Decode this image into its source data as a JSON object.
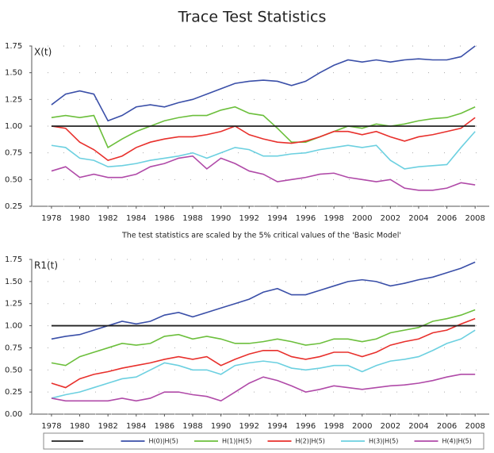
{
  "title": "Trace Test Statistics",
  "note": "The test statistics are scaled by the 5% critical values of the 'Basic Model'",
  "chart_data": [
    {
      "type": "line",
      "label": "X(t)",
      "x": [
        1978,
        1979,
        1980,
        1981,
        1982,
        1983,
        1984,
        1985,
        1986,
        1987,
        1988,
        1989,
        1990,
        1991,
        1992,
        1993,
        1994,
        1995,
        1996,
        1997,
        1998,
        1999,
        2000,
        2001,
        2002,
        2003,
        2004,
        2005,
        2006,
        2007,
        2008
      ],
      "xlim": [
        1976.6,
        2009
      ],
      "xticks": [
        1978,
        1980,
        1982,
        1984,
        1986,
        1988,
        1990,
        1992,
        1994,
        1996,
        1998,
        2000,
        2002,
        2004,
        2006,
        2008
      ],
      "ylim": [
        0.25,
        1.75
      ],
      "yticks": [
        0.25,
        {
          "value": 0.5,
          "label": "0.50"
        },
        0.75,
        {
          "value": 1,
          "label": "1.00"
        },
        1.25,
        {
          "value": 1.5,
          "label": "1.50"
        },
        1.75
      ],
      "grid": true,
      "hline": {
        "value": 1,
        "color": "#222222"
      },
      "series": [
        {
          "name": "H(0)|H(5)",
          "color": "#3a4fa8",
          "values": [
            1.2,
            1.3,
            1.33,
            1.3,
            1.05,
            1.1,
            1.18,
            1.2,
            1.18,
            1.22,
            1.25,
            1.3,
            1.35,
            1.4,
            1.42,
            1.43,
            1.42,
            1.38,
            1.42,
            1.5,
            1.57,
            1.62,
            1.6,
            1.62,
            1.6,
            1.62,
            1.63,
            1.62,
            1.62,
            1.65,
            1.75
          ]
        },
        {
          "name": "H(1)|H(5)",
          "color": "#6cbf3c",
          "values": [
            1.08,
            1.1,
            1.08,
            1.1,
            0.8,
            0.88,
            0.95,
            1.0,
            1.05,
            1.08,
            1.1,
            1.1,
            1.15,
            1.18,
            1.12,
            1.1,
            0.98,
            0.85,
            0.85,
            0.9,
            0.95,
            1.0,
            0.98,
            1.02,
            1.0,
            1.02,
            1.05,
            1.07,
            1.08,
            1.12,
            1.18
          ]
        },
        {
          "name": "H(2)|H(5)",
          "color": "#e8302c",
          "values": [
            1.0,
            0.98,
            0.85,
            0.78,
            0.68,
            0.72,
            0.8,
            0.85,
            0.88,
            0.9,
            0.9,
            0.92,
            0.95,
            1.0,
            0.92,
            0.88,
            0.85,
            0.84,
            0.86,
            0.9,
            0.95,
            0.95,
            0.92,
            0.95,
            0.9,
            0.86,
            0.9,
            0.92,
            0.95,
            0.98,
            1.08
          ]
        },
        {
          "name": "H(3)|H(5)",
          "color": "#6cd0e0",
          "values": [
            0.82,
            0.8,
            0.7,
            0.68,
            0.62,
            0.63,
            0.65,
            0.68,
            0.7,
            0.72,
            0.75,
            0.7,
            0.75,
            0.8,
            0.78,
            0.72,
            0.72,
            0.74,
            0.75,
            0.78,
            0.8,
            0.82,
            0.8,
            0.82,
            0.68,
            0.6,
            0.62,
            0.63,
            0.64,
            0.8,
            0.95
          ]
        },
        {
          "name": "H(4)|H(5)",
          "color": "#b04aa8",
          "values": [
            0.58,
            0.62,
            0.52,
            0.55,
            0.52,
            0.52,
            0.55,
            0.62,
            0.65,
            0.7,
            0.72,
            0.6,
            0.7,
            0.65,
            0.58,
            0.55,
            0.48,
            0.5,
            0.52,
            0.55,
            0.56,
            0.52,
            0.5,
            0.48,
            0.5,
            0.42,
            0.4,
            0.4,
            0.42,
            0.47,
            0.45
          ]
        }
      ]
    },
    {
      "type": "line",
      "label": "R1(t)",
      "x": [
        1978,
        1979,
        1980,
        1981,
        1982,
        1983,
        1984,
        1985,
        1986,
        1987,
        1988,
        1989,
        1990,
        1991,
        1992,
        1993,
        1994,
        1995,
        1996,
        1997,
        1998,
        1999,
        2000,
        2001,
        2002,
        2003,
        2004,
        2005,
        2006,
        2007,
        2008
      ],
      "xlim": [
        1976.6,
        2009
      ],
      "xticks": [
        1978,
        1980,
        1982,
        1984,
        1986,
        1988,
        1990,
        1992,
        1994,
        1996,
        1998,
        2000,
        2002,
        2004,
        2006,
        2008
      ],
      "ylim": [
        0,
        1.75
      ],
      "yticks": [
        {
          "value": 0,
          "label": "0.00"
        },
        0.25,
        {
          "value": 0.5,
          "label": "0.50"
        },
        0.75,
        {
          "value": 1,
          "label": "1.00"
        },
        1.25,
        {
          "value": 1.5,
          "label": "1.50"
        },
        1.75
      ],
      "grid": true,
      "hline": {
        "value": 1,
        "color": "#222222"
      },
      "series": [
        {
          "name": "H(0)|H(5)",
          "color": "#3a4fa8",
          "values": [
            0.85,
            0.88,
            0.9,
            0.95,
            1.0,
            1.05,
            1.02,
            1.05,
            1.12,
            1.15,
            1.1,
            1.15,
            1.2,
            1.25,
            1.3,
            1.38,
            1.42,
            1.35,
            1.35,
            1.4,
            1.45,
            1.5,
            1.52,
            1.5,
            1.45,
            1.48,
            1.52,
            1.55,
            1.6,
            1.65,
            1.72
          ]
        },
        {
          "name": "H(1)|H(5)",
          "color": "#6cbf3c",
          "values": [
            0.58,
            0.55,
            0.65,
            0.7,
            0.75,
            0.8,
            0.78,
            0.8,
            0.88,
            0.9,
            0.85,
            0.88,
            0.85,
            0.8,
            0.8,
            0.82,
            0.85,
            0.82,
            0.78,
            0.8,
            0.85,
            0.85,
            0.82,
            0.85,
            0.92,
            0.95,
            0.98,
            1.05,
            1.08,
            1.12,
            1.18
          ]
        },
        {
          "name": "H(2)|H(5)",
          "color": "#e8302c",
          "values": [
            0.35,
            0.3,
            0.4,
            0.45,
            0.48,
            0.52,
            0.55,
            0.58,
            0.62,
            0.65,
            0.62,
            0.65,
            0.55,
            0.62,
            0.68,
            0.72,
            0.72,
            0.65,
            0.62,
            0.65,
            0.7,
            0.7,
            0.65,
            0.7,
            0.78,
            0.82,
            0.85,
            0.92,
            0.95,
            1.02,
            1.08
          ]
        },
        {
          "name": "H(3)|H(5)",
          "color": "#6cd0e0",
          "values": [
            0.18,
            0.22,
            0.25,
            0.3,
            0.35,
            0.4,
            0.42,
            0.5,
            0.58,
            0.55,
            0.5,
            0.5,
            0.45,
            0.55,
            0.58,
            0.6,
            0.58,
            0.52,
            0.5,
            0.52,
            0.55,
            0.55,
            0.48,
            0.55,
            0.6,
            0.62,
            0.65,
            0.72,
            0.8,
            0.85,
            0.95
          ]
        },
        {
          "name": "H(4)|H(5)",
          "color": "#b04aa8",
          "values": [
            0.18,
            0.15,
            0.15,
            0.15,
            0.15,
            0.18,
            0.15,
            0.18,
            0.25,
            0.25,
            0.22,
            0.2,
            0.15,
            0.25,
            0.35,
            0.42,
            0.38,
            0.32,
            0.25,
            0.28,
            0.32,
            0.3,
            0.28,
            0.3,
            0.32,
            0.33,
            0.35,
            0.38,
            0.42,
            0.45,
            0.45
          ]
        }
      ]
    }
  ]
}
